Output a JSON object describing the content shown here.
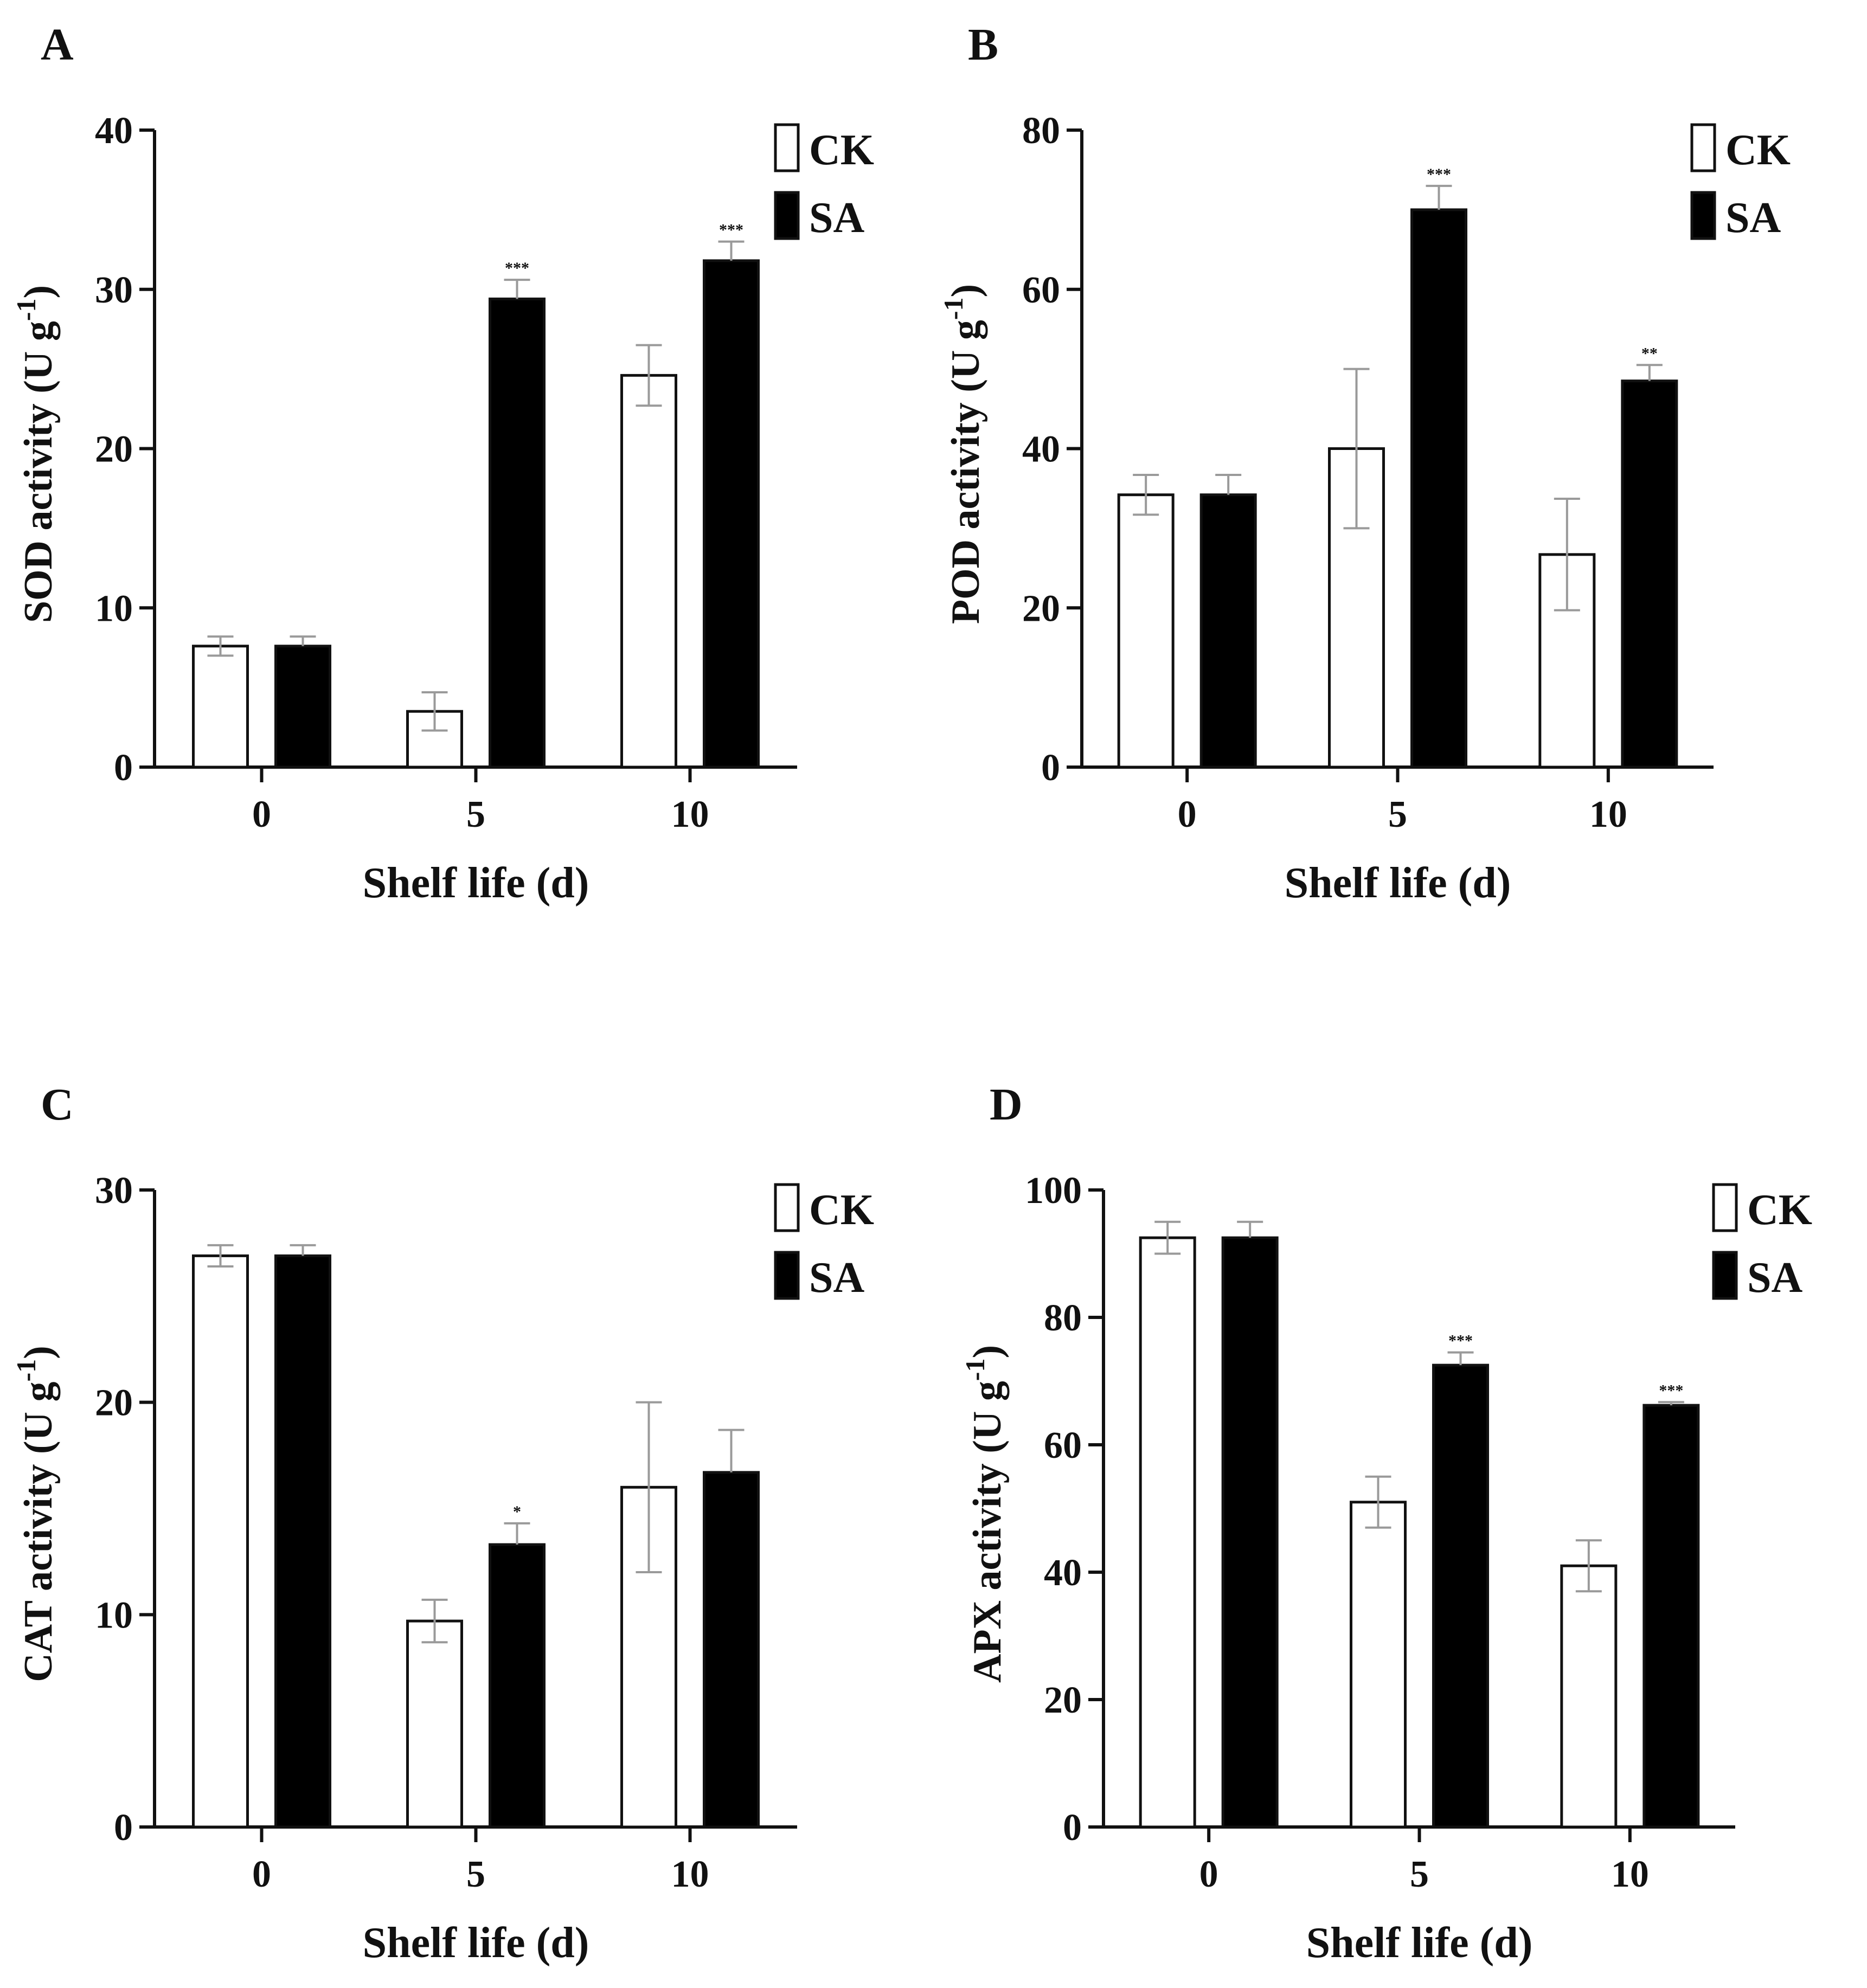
{
  "legend": {
    "ck": "CK",
    "sa": "SA"
  },
  "colors": {
    "ck_fill": "#ffffff",
    "sa_fill": "#000000",
    "axis": "#111111",
    "error_bar": "#9a9a9a"
  },
  "chart_data": [
    {
      "panel": "A",
      "type": "bar",
      "categories": [
        "0",
        "5",
        "10"
      ],
      "xlabel": "Shelf life (d)",
      "ylabel": "SOD activity (U g",
      "ylabel_sup": "-1",
      "ylabel_end": ")",
      "ylim": [
        0,
        40
      ],
      "yticks": [
        "0",
        "10",
        "20",
        "30",
        "40"
      ],
      "series": [
        {
          "name": "CK",
          "values": [
            7.6,
            3.5,
            24.6
          ],
          "errors": [
            0.6,
            1.2,
            1.9
          ],
          "sig": [
            "",
            "",
            ""
          ]
        },
        {
          "name": "SA",
          "values": [
            7.6,
            29.4,
            31.8
          ],
          "errors": [
            0.6,
            1.2,
            1.2
          ],
          "sig": [
            "",
            "***",
            "***"
          ]
        }
      ]
    },
    {
      "panel": "B",
      "type": "bar",
      "categories": [
        "0",
        "5",
        "10"
      ],
      "xlabel": "Shelf life (d)",
      "ylabel": "POD activity (U g",
      "ylabel_sup": "-1",
      "ylabel_end": ")",
      "ylim": [
        0,
        80
      ],
      "yticks": [
        "0",
        "20",
        "40",
        "60",
        "80"
      ],
      "series": [
        {
          "name": "CK",
          "values": [
            34.2,
            40.0,
            26.7
          ],
          "errors": [
            2.5,
            10.0,
            7.0
          ],
          "sig": [
            "",
            "",
            ""
          ]
        },
        {
          "name": "SA",
          "values": [
            34.2,
            70.0,
            48.5
          ],
          "errors": [
            2.5,
            3.0,
            2.0
          ],
          "sig": [
            "",
            "***",
            "**"
          ]
        }
      ]
    },
    {
      "panel": "C",
      "type": "bar",
      "categories": [
        "0",
        "5",
        "10"
      ],
      "xlabel": "Shelf life (d)",
      "ylabel": "CAT activity (U g",
      "ylabel_sup": "-1",
      "ylabel_end": ")",
      "ylim": [
        0,
        30
      ],
      "yticks": [
        "0",
        "10",
        "20",
        "30"
      ],
      "series": [
        {
          "name": "CK",
          "values": [
            26.9,
            9.7,
            16.0
          ],
          "errors": [
            0.5,
            1.0,
            4.0
          ],
          "sig": [
            "",
            "",
            ""
          ]
        },
        {
          "name": "SA",
          "values": [
            26.9,
            13.3,
            16.7
          ],
          "errors": [
            0.5,
            1.0,
            2.0
          ],
          "sig": [
            "",
            "*",
            ""
          ]
        }
      ]
    },
    {
      "panel": "D",
      "type": "bar",
      "categories": [
        "0",
        "5",
        "10"
      ],
      "xlabel": "Shelf life (d)",
      "ylabel": "APX activity (U g",
      "ylabel_sup": "-1",
      "ylabel_end": ")",
      "ylim": [
        0,
        100
      ],
      "yticks": [
        "0",
        "20",
        "40",
        "60",
        "80",
        "100"
      ],
      "series": [
        {
          "name": "CK",
          "values": [
            92.5,
            51.0,
            41.0
          ],
          "errors": [
            2.5,
            4.0,
            4.0
          ],
          "sig": [
            "",
            "",
            ""
          ]
        },
        {
          "name": "SA",
          "values": [
            92.5,
            72.5,
            66.2
          ],
          "errors": [
            2.5,
            2.0,
            0.5
          ],
          "sig": [
            "",
            "***",
            "***"
          ]
        }
      ]
    }
  ]
}
